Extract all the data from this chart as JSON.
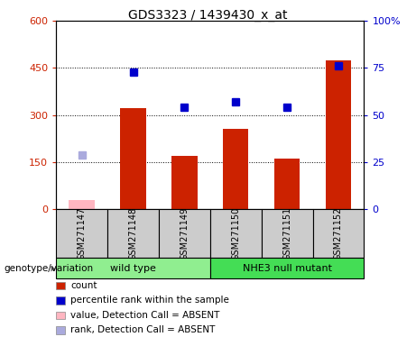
{
  "title": "GDS3323 / 1439430_x_at",
  "samples": [
    "GSM271147",
    "GSM271148",
    "GSM271149",
    "GSM271150",
    "GSM271151",
    "GSM271152"
  ],
  "count_values": [
    null,
    322,
    170,
    255,
    162,
    475
  ],
  "count_absent": [
    30,
    null,
    null,
    null,
    null,
    null
  ],
  "rank_values": [
    null,
    73,
    54,
    57,
    54,
    76
  ],
  "rank_absent": [
    29,
    null,
    null,
    null,
    null,
    null
  ],
  "ylim_left": [
    0,
    600
  ],
  "ylim_right": [
    0,
    100
  ],
  "yticks_left": [
    0,
    150,
    300,
    450,
    600
  ],
  "ytick_labels_left": [
    "0",
    "150",
    "300",
    "450",
    "600"
  ],
  "yticks_right": [
    0,
    25,
    50,
    75,
    100
  ],
  "ytick_labels_right": [
    "0",
    "25",
    "50",
    "75",
    "100%"
  ],
  "groups": [
    {
      "label": "wild type",
      "indices": [
        0,
        1,
        2
      ],
      "color": "#90EE90"
    },
    {
      "label": "NHE3 null mutant",
      "indices": [
        3,
        4,
        5
      ],
      "color": "#44DD55"
    }
  ],
  "bar_color": "#CC2200",
  "bar_absent_color": "#FFB6C1",
  "rank_color": "#0000CC",
  "rank_absent_color": "#AAAADD",
  "bg_color": "#CCCCCC",
  "grid_color": "black",
  "left_tick_color": "#CC2200",
  "right_tick_color": "#0000CC",
  "genotype_label": "genotype/variation",
  "legend_items": [
    {
      "label": "count",
      "color": "#CC2200"
    },
    {
      "label": "percentile rank within the sample",
      "color": "#0000CC"
    },
    {
      "label": "value, Detection Call = ABSENT",
      "color": "#FFB6C1"
    },
    {
      "label": "rank, Detection Call = ABSENT",
      "color": "#AAAADD"
    }
  ]
}
